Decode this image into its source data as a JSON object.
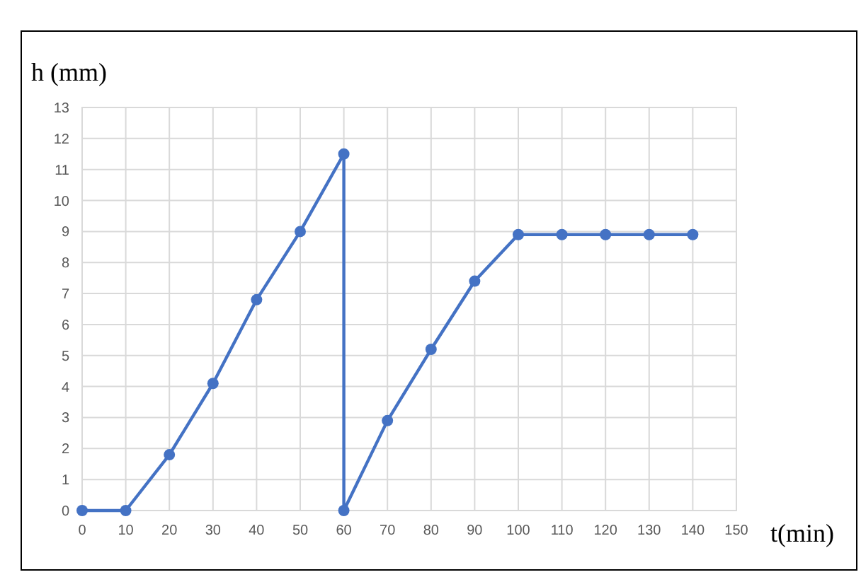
{
  "chart_data": {
    "type": "line",
    "ylabel": "h (mm)",
    "xlabel": "t(min)",
    "x": [
      0,
      10,
      20,
      30,
      40,
      50,
      60,
      60,
      70,
      80,
      90,
      100,
      110,
      120,
      130,
      140
    ],
    "series": [
      {
        "color": "#4472c4",
        "values": [
          0,
          0,
          1.8,
          4.1,
          6.8,
          9,
          11.5,
          0,
          2.9,
          5.2,
          7.4,
          8.9,
          8.9,
          8.9,
          8.9,
          8.9
        ]
      }
    ],
    "xlim": [
      0,
      150
    ],
    "xticks": [
      0,
      10,
      20,
      30,
      40,
      50,
      60,
      70,
      80,
      90,
      100,
      110,
      120,
      130,
      140,
      150
    ],
    "ylim": [
      0,
      13
    ],
    "yticks": [
      0,
      1,
      2,
      3,
      4,
      5,
      6,
      7,
      8,
      9,
      10,
      11,
      12,
      13
    ],
    "grid": true,
    "marker": "circle",
    "line_style": "solid"
  }
}
